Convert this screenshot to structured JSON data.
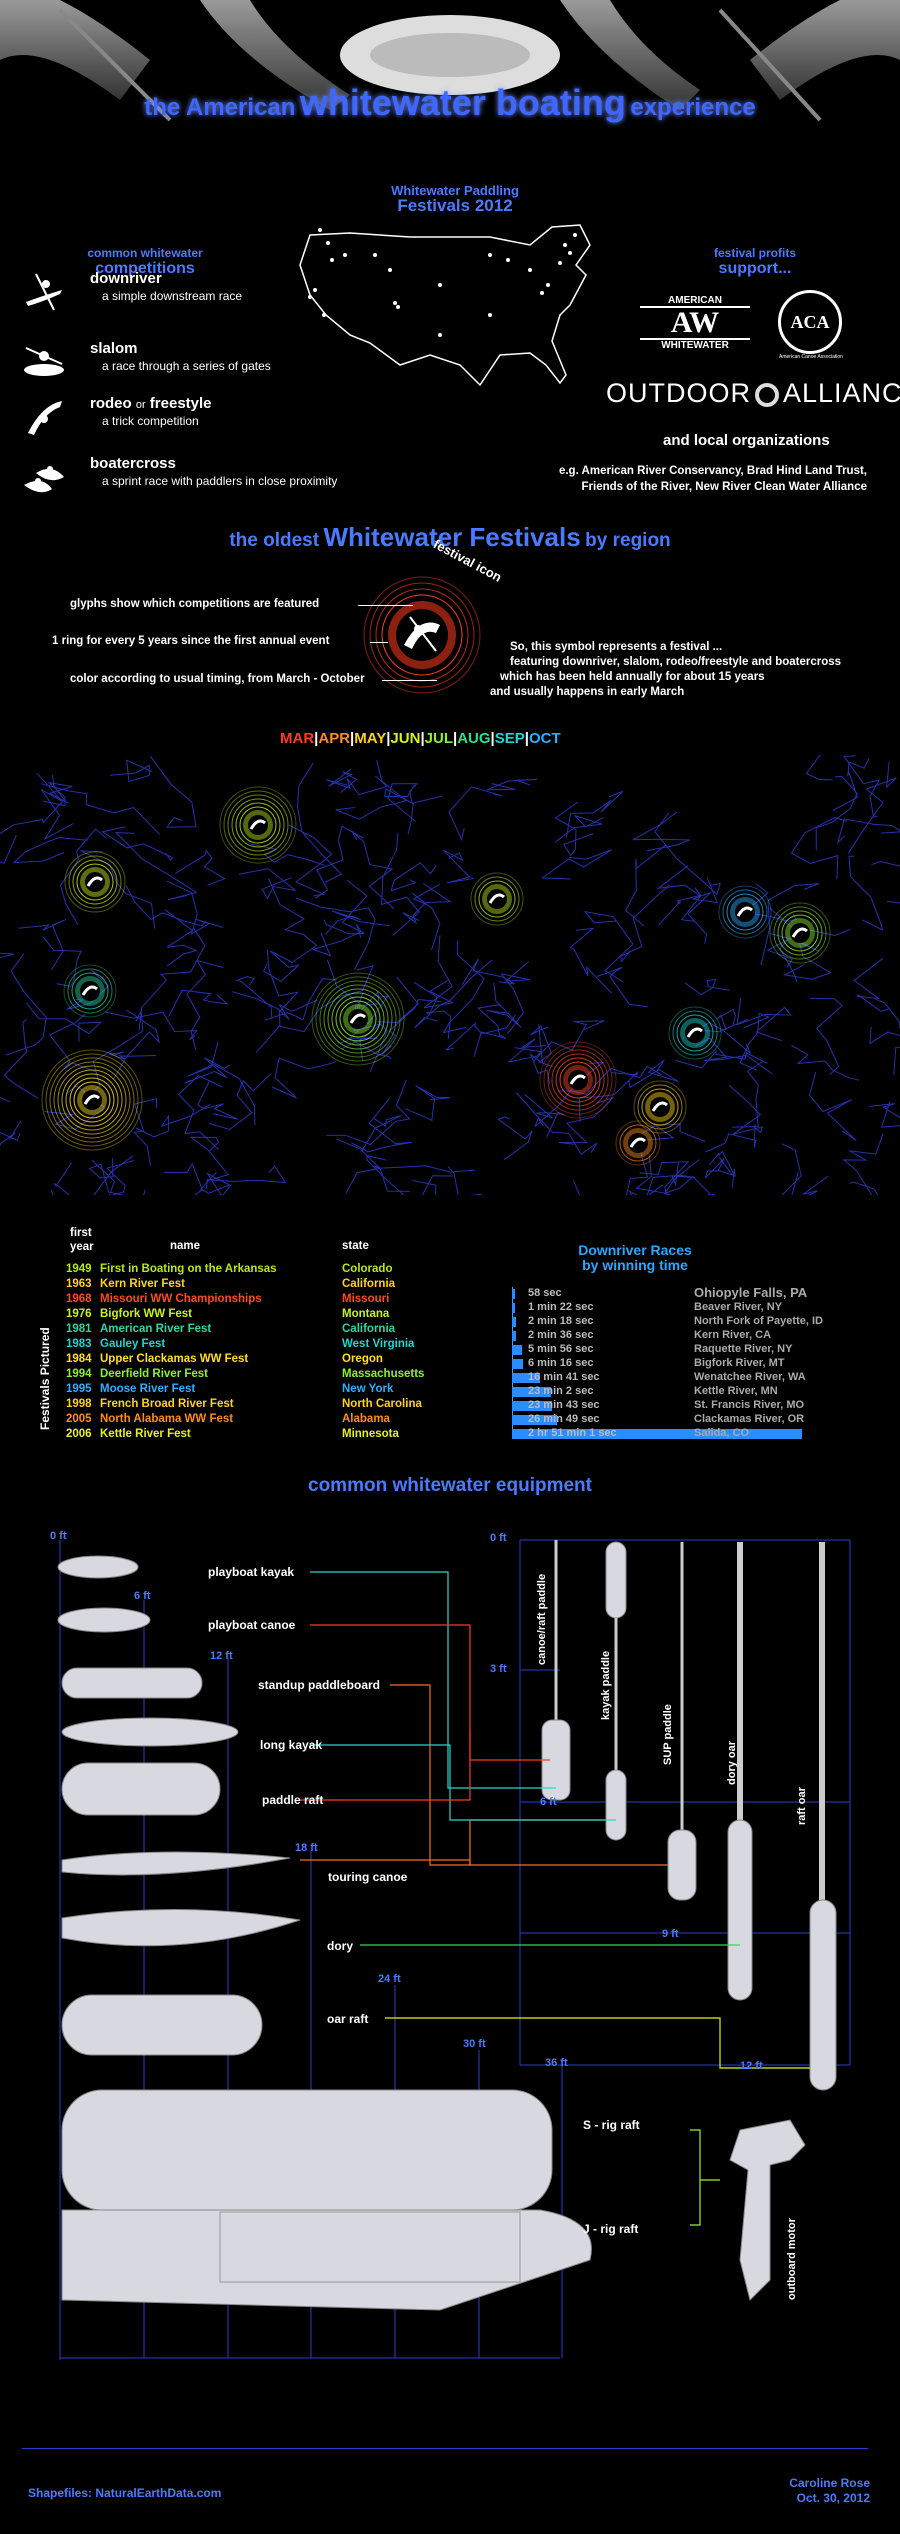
{
  "header": {
    "title_pre": "the American",
    "title_main": "whitewater boating",
    "title_post": "experience"
  },
  "festivals2012": {
    "line1": "Whitewater Paddling",
    "line2": "Festivals 2012"
  },
  "competitions": {
    "heading1": "common whitewater",
    "heading2": "competitions",
    "items": [
      {
        "name": "downriver",
        "desc": "a simple downstream race",
        "icon": "kayaker-downriver-icon"
      },
      {
        "name": "slalom",
        "desc": "a race through a series of gates",
        "icon": "kayaker-slalom-icon"
      },
      {
        "name_a": "rodeo",
        "name_or": "or",
        "name_b": "freestyle",
        "desc": "a trick competition",
        "icon": "kayaker-freestyle-icon"
      },
      {
        "name": "boatercross",
        "desc": "a sprint race with paddlers in close proximity",
        "icon": "kayaker-boatercross-icon"
      }
    ]
  },
  "profits": {
    "heading1": "festival profits",
    "heading2": "support...",
    "aw_top": "AMERICAN",
    "aw_mid": "AW",
    "aw_bottom": "WHITEWATER",
    "aca_text": "ACA",
    "aca_sub": "American Canoe Association",
    "oa_left": "OUTDOOR",
    "oa_right": "ALLIANCE",
    "local": "and local organizations",
    "eg1": "e.g. American River Conservancy, Brad Hind Land Trust,",
    "eg2": "Friends of the River, New River Clean Water Alliance"
  },
  "oldest": {
    "pre": "the oldest",
    "main": "Whitewater Festivals",
    "post": "by region",
    "icon_label": "festival icon",
    "legend1": "glyphs show which competitions are featured",
    "legend2": "1 ring for every 5 years since the first annual event",
    "legend3": "color according to usual timing, from March - October",
    "desc1": "So, this symbol represents a festival ...",
    "desc2": "featuring downriver, slalom, rodeo/freestyle and boatercross",
    "desc3": "which has been held annually for about 15 years",
    "desc4": "and usually happens in early March"
  },
  "months": [
    {
      "label": "MAR",
      "color": "#ff3b1f"
    },
    {
      "label": "APR",
      "color": "#ff8c1a"
    },
    {
      "label": "MAY",
      "color": "#ffd21a"
    },
    {
      "label": "JUN",
      "color": "#d7f21a"
    },
    {
      "label": "JUL",
      "color": "#8ef02a"
    },
    {
      "label": "AUG",
      "color": "#2ae08a"
    },
    {
      "label": "SEP",
      "color": "#1ad7d0"
    },
    {
      "label": "OCT",
      "color": "#2ab0ff"
    }
  ],
  "month_sep": "|",
  "festival_table": {
    "side_label": "Festivals Pictured",
    "col_year_1": "first",
    "col_year_2": "year",
    "col_name": "name",
    "col_state": "state",
    "rows": [
      {
        "year": "1949",
        "name": "First in Boating on the Arkansas",
        "state": "Colorado",
        "color": "#b9e81a"
      },
      {
        "year": "1963",
        "name": "Kern River Fest",
        "state": "California",
        "color": "#ffd21a"
      },
      {
        "year": "1968",
        "name": "Missouri WW Championships",
        "state": "Missouri",
        "color": "#ff4a1f"
      },
      {
        "year": "1976",
        "name": "Bigfork WW Fest",
        "state": "Montana",
        "color": "#c8f21a"
      },
      {
        "year": "1981",
        "name": "American River Fest",
        "state": "California",
        "color": "#2ad7a0"
      },
      {
        "year": "1983",
        "name": "Gauley Fest",
        "state": "West Virginia",
        "color": "#1ad7d0"
      },
      {
        "year": "1984",
        "name": "Upper Clackamas WW Fest",
        "state": "Oregon",
        "color": "#ffe01a"
      },
      {
        "year": "1994",
        "name": "Deerfield River Fest",
        "state": "Massachusetts",
        "color": "#8ef02a"
      },
      {
        "year": "1995",
        "name": "Moose River Fest",
        "state": "New York",
        "color": "#2ab0ff"
      },
      {
        "year": "1998",
        "name": "French Broad River Fest",
        "state": "North Carolina",
        "color": "#ffd21a"
      },
      {
        "year": "2005",
        "name": "North Alabama WW Fest",
        "state": "Alabama",
        "color": "#ff8c1a"
      },
      {
        "year": "2006",
        "name": "Kettle River Fest",
        "state": "Minnesota",
        "color": "#e6f21a"
      }
    ]
  },
  "races": {
    "title1": "Downriver Races",
    "title2": "by winning time",
    "rows": [
      {
        "time": "58 sec",
        "place": "Ohiopyle Falls, PA",
        "seconds": 58
      },
      {
        "time": "1 min 22 sec",
        "place": "Beaver River, NY",
        "seconds": 82
      },
      {
        "time": "2 min 18 sec",
        "place": "North Fork of Payette, ID",
        "seconds": 138
      },
      {
        "time": "2 min 36 sec",
        "place": "Kern River, CA",
        "seconds": 156
      },
      {
        "time": "5 min 56 sec",
        "place": "Raquette River, NY",
        "seconds": 356
      },
      {
        "time": "6 min 16 sec",
        "place": "Bigfork River, MT",
        "seconds": 376
      },
      {
        "time": "16 min 41 sec",
        "place": "Wenatchee River, WA",
        "seconds": 1001
      },
      {
        "time": "23 min 2 sec",
        "place": "Kettle River, MN",
        "seconds": 1382
      },
      {
        "time": "23 min 43 sec",
        "place": "St. Francis River, MO",
        "seconds": 1423
      },
      {
        "time": "26 min 49 sec",
        "place": "Clackamas River, OR",
        "seconds": 1609
      },
      {
        "time": "2 hr 51 min 1 sec",
        "place": "Salida, CO",
        "seconds": 10261
      }
    ]
  },
  "equipment": {
    "title": "common whitewater equipment",
    "boats_ft": [
      "0 ft",
      "6 ft",
      "12 ft",
      "18 ft",
      "24 ft",
      "30 ft",
      "36 ft"
    ],
    "paddles_ft": [
      "0 ft",
      "3 ft",
      "6 ft",
      "9 ft",
      "12 ft"
    ],
    "labels": {
      "playboat_kayak": "playboat kayak",
      "playboat_canoe": "playboat canoe",
      "sup_board": "standup paddleboard",
      "long_kayak": "long kayak",
      "paddle_raft": "paddle raft",
      "touring_canoe": "touring canoe",
      "dory": "dory",
      "oar_raft": "oar raft",
      "s_rig": "S - rig raft",
      "j_rig": "J - rig raft"
    },
    "paddles": {
      "canoe": "canoe/raft paddle",
      "kayak": "kayak paddle",
      "sup": "SUP paddle",
      "dory": "dory oar",
      "raft": "raft oar",
      "motor": "outboard motor"
    },
    "colors": {
      "kayak": "#2ad7c8",
      "canoe": "#ff3b1f",
      "sup": "#ff6a1f",
      "longkayak": "#2ad7c8",
      "paddleraft": "#ff3b1f",
      "dory": "#2ae04a",
      "oarraft": "#e6f21a",
      "rig": "#9ef02a"
    }
  },
  "footer": {
    "source": "Shapefiles: NaturalEarthData.com",
    "author": "Caroline Rose",
    "date": "Oct. 30, 2012"
  }
}
